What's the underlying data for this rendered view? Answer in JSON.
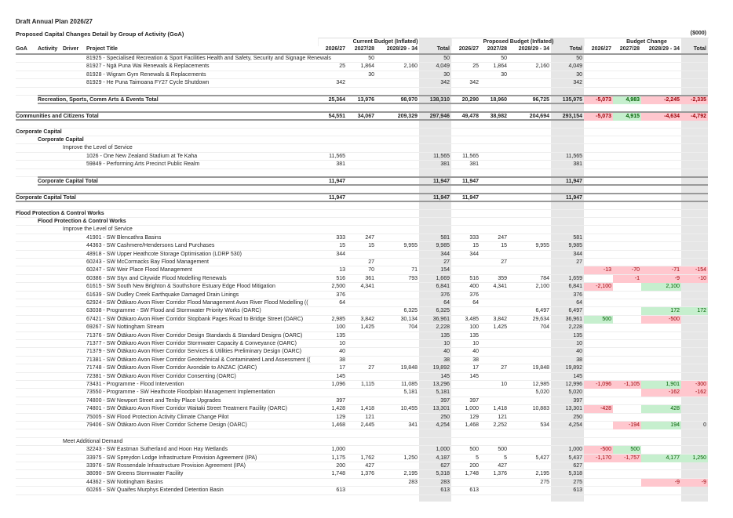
{
  "document": {
    "title": "Draft Annual Plan 2026/27",
    "subtitle": "Proposed Capital Changes Detail by Group of Activity (GoA)",
    "units": "($000)"
  },
  "group_headers": [
    "Current Budget (Inflated)",
    "Proposed Budget (Inflated)",
    "Budget Change"
  ],
  "column_headers": {
    "left": [
      "GoA",
      "Activity",
      "Driver",
      "Project Title"
    ],
    "periods": [
      "2026/27",
      "2027/28",
      "2028/29 - 34",
      "Total"
    ]
  },
  "colors": {
    "negative_bg": "#ffc7ce",
    "negative_text": "#9c0006",
    "positive_bg": "#c6efce",
    "positive_text": "#006100",
    "total_band": "#e6e6e6"
  },
  "rows": [
    {
      "level": 4,
      "label": "81925 - Specialised Recreation & Sport Facilities Health and Safety, Security and Signage Renewals",
      "cur": [
        "",
        "50",
        "",
        "50"
      ],
      "prop": [
        "",
        "50",
        "",
        "50"
      ],
      "chg": [
        "",
        "",
        "",
        ""
      ]
    },
    {
      "level": 4,
      "label": "81927 - Ngā Puna Wai Renewals & Replacements",
      "cur": [
        "25",
        "1,864",
        "2,160",
        "4,049"
      ],
      "prop": [
        "25",
        "1,864",
        "2,160",
        "4,049"
      ],
      "chg": [
        "",
        "",
        "",
        ""
      ]
    },
    {
      "level": 4,
      "label": "81928 - Wigram Gym Renewals & Replacements",
      "cur": [
        "",
        "30",
        "",
        "30"
      ],
      "prop": [
        "",
        "30",
        "",
        "30"
      ],
      "chg": [
        "",
        "",
        "",
        ""
      ]
    },
    {
      "level": 4,
      "label": "81929 - He Puna Taimoana FY27 Cycle Shutdown",
      "cur": [
        "342",
        "",
        "",
        "342"
      ],
      "prop": [
        "342",
        "",
        "",
        "342"
      ],
      "chg": [
        "",
        "",
        "",
        ""
      ]
    },
    {
      "blank": true
    },
    {
      "level": 2,
      "total": true,
      "label": "Recreation, Sports, Comm Arts & Events Total",
      "cur": [
        "25,364",
        "13,976",
        "98,970",
        "138,310"
      ],
      "prop": [
        "20,290",
        "18,960",
        "96,725",
        "135,975"
      ],
      "chg": [
        "-5,073",
        "4,983",
        "-2,245",
        "-2,335"
      ]
    },
    {
      "blank": true
    },
    {
      "level": 1,
      "total": true,
      "label": "Communities and Citizens Total",
      "cur": [
        "54,551",
        "34,067",
        "209,329",
        "297,946"
      ],
      "prop": [
        "49,478",
        "38,982",
        "204,694",
        "293,154"
      ],
      "chg": [
        "-5,073",
        "4,915",
        "-4,634",
        "-4,792"
      ]
    },
    {
      "blank": true
    },
    {
      "level": 1,
      "bold": true,
      "label": "Corporate Capital"
    },
    {
      "level": 2,
      "bold": true,
      "label": "Corporate Capital"
    },
    {
      "level": 3,
      "label": "Improve the Level of Service"
    },
    {
      "level": 4,
      "label": "1026 - One New Zealand Stadium at Te Kaha",
      "cur": [
        "11,565",
        "",
        "",
        "11,565"
      ],
      "prop": [
        "11,565",
        "",
        "",
        "11,565"
      ],
      "chg": [
        "",
        "",
        "",
        ""
      ]
    },
    {
      "level": 4,
      "label": "59849 - Performing Arts Precinct Public Realm",
      "cur": [
        "381",
        "",
        "",
        "381"
      ],
      "prop": [
        "381",
        "",
        "",
        "381"
      ],
      "chg": [
        "",
        "",
        "",
        ""
      ]
    },
    {
      "blank": true
    },
    {
      "level": 2,
      "total": true,
      "label": "Corporate Capital Total",
      "cur": [
        "11,947",
        "",
        "",
        "11,947"
      ],
      "prop": [
        "11,947",
        "",
        "",
        "11,947"
      ],
      "chg": [
        "",
        "",
        "",
        ""
      ]
    },
    {
      "blank": true
    },
    {
      "level": 1,
      "total": true,
      "label": "Corporate Capital Total",
      "cur": [
        "11,947",
        "",
        "",
        "11,947"
      ],
      "prop": [
        "11,947",
        "",
        "",
        "11,947"
      ],
      "chg": [
        "",
        "",
        "",
        ""
      ]
    },
    {
      "blank": true
    },
    {
      "level": 1,
      "bold": true,
      "label": "Flood Protection & Control Works"
    },
    {
      "level": 2,
      "bold": true,
      "label": "Flood Protection & Control Works"
    },
    {
      "level": 3,
      "label": "Improve the Level of Service"
    },
    {
      "level": 4,
      "label": "41901 - SW Blencathra Basins",
      "cur": [
        "333",
        "247",
        "",
        "581"
      ],
      "prop": [
        "333",
        "247",
        "",
        "581"
      ],
      "chg": [
        "",
        "",
        "",
        ""
      ]
    },
    {
      "level": 4,
      "label": "44363 - SW Cashmere/Hendersons Land Purchases",
      "cur": [
        "15",
        "15",
        "9,955",
        "9,985"
      ],
      "prop": [
        "15",
        "15",
        "9,955",
        "9,985"
      ],
      "chg": [
        "",
        "",
        "",
        ""
      ]
    },
    {
      "level": 4,
      "label": "48918 - SW Upper Heathcote Storage Optimisation (LDRP 530)",
      "cur": [
        "344",
        "",
        "",
        "344"
      ],
      "prop": [
        "344",
        "",
        "",
        "344"
      ],
      "chg": [
        "",
        "",
        "",
        ""
      ]
    },
    {
      "level": 4,
      "label": "60243 - SW McCormacks Bay Flood Management",
      "cur": [
        "",
        "27",
        "",
        "27"
      ],
      "prop": [
        "",
        "27",
        "",
        "27"
      ],
      "chg": [
        "",
        "",
        "",
        ""
      ]
    },
    {
      "level": 4,
      "label": "60247 - SW Weir Place Flood Management",
      "cur": [
        "13",
        "70",
        "71",
        "154"
      ],
      "prop": [
        "",
        "",
        "",
        ""
      ],
      "chg": [
        "-13",
        "-70",
        "-71",
        "-154"
      ]
    },
    {
      "level": 4,
      "label": "60386 - SW Styx and Citywide Flood Modelling Renewals",
      "cur": [
        "516",
        "361",
        "793",
        "1,669"
      ],
      "prop": [
        "516",
        "359",
        "784",
        "1,659"
      ],
      "chg": [
        "",
        "-1",
        "-9",
        "-10"
      ]
    },
    {
      "level": 4,
      "label": "61615 - SW South New Brighton & Southshore Estuary Edge Flood Mitigation",
      "cur": [
        "2,500",
        "4,341",
        "",
        "6,841"
      ],
      "prop": [
        "400",
        "4,341",
        "2,100",
        "6,841"
      ],
      "chg": [
        "-2,100",
        "",
        "2,100",
        ""
      ]
    },
    {
      "level": 4,
      "label": "61639 - SW Dudley Creek Earthquake Damaged Drain Linings",
      "cur": [
        "376",
        "",
        "",
        "376"
      ],
      "prop": [
        "376",
        "",
        "",
        "376"
      ],
      "chg": [
        "",
        "",
        "",
        ""
      ]
    },
    {
      "level": 4,
      "label": "62924 - SW Ōtākaro Avon River Corridor Flood Management Avon River Flood Modelling ((",
      "cur": [
        "64",
        "",
        "",
        "64"
      ],
      "prop": [
        "64",
        "",
        "",
        "64"
      ],
      "chg": [
        "",
        "",
        "",
        ""
      ]
    },
    {
      "level": 4,
      "label": "63038 - Programme - SW Flood and Stormwater Priority Works (OARC)",
      "cur": [
        "",
        "",
        "6,325",
        "6,325"
      ],
      "prop": [
        "",
        "",
        "6,497",
        "6,497"
      ],
      "chg": [
        "",
        "",
        "172",
        "172"
      ]
    },
    {
      "level": 4,
      "label": "67421 - SW Ōtākaro Avon River Corridor Stopbank Pages Road to Bridge Street (OARC)",
      "cur": [
        "2,985",
        "3,842",
        "30,134",
        "36,961"
      ],
      "prop": [
        "3,485",
        "3,842",
        "29,634",
        "36,961"
      ],
      "chg": [
        "500",
        "",
        "-500",
        ""
      ]
    },
    {
      "level": 4,
      "label": "69267 - SW Nottingham Stream",
      "cur": [
        "100",
        "1,425",
        "704",
        "2,228"
      ],
      "prop": [
        "100",
        "1,425",
        "704",
        "2,228"
      ],
      "chg": [
        "",
        "",
        "",
        ""
      ]
    },
    {
      "level": 4,
      "label": "71376 - SW Ōtākaro Avon River Corridor Design Standards & Standard Designs (OARC)",
      "cur": [
        "135",
        "",
        "",
        "135"
      ],
      "prop": [
        "135",
        "",
        "",
        "135"
      ],
      "chg": [
        "",
        "",
        "",
        ""
      ]
    },
    {
      "level": 4,
      "label": "71377 - SW Ōtākaro Avon River Corridor Stormwater Capacity & Conveyance (OARC)",
      "cur": [
        "10",
        "",
        "",
        "10"
      ],
      "prop": [
        "10",
        "",
        "",
        "10"
      ],
      "chg": [
        "",
        "",
        "",
        ""
      ]
    },
    {
      "level": 4,
      "label": "71379 - SW Ōtākaro Avon River Corridor Services & Utilities Preliminary Design (OARC)",
      "cur": [
        "40",
        "",
        "",
        "40"
      ],
      "prop": [
        "40",
        "",
        "",
        "40"
      ],
      "chg": [
        "",
        "",
        "",
        ""
      ]
    },
    {
      "level": 4,
      "label": "71381 - SW Ōtākaro Avon River Corridor Geotechnical & Contaminated Land Assessment ((",
      "cur": [
        "38",
        "",
        "",
        "38"
      ],
      "prop": [
        "38",
        "",
        "",
        "38"
      ],
      "chg": [
        "",
        "",
        "",
        ""
      ]
    },
    {
      "level": 4,
      "label": "71748 - SW Ōtākaro Avon River Corridor Avondale to ANZAC (OARC)",
      "cur": [
        "17",
        "27",
        "19,848",
        "19,892"
      ],
      "prop": [
        "17",
        "27",
        "19,848",
        "19,892"
      ],
      "chg": [
        "",
        "",
        "",
        ""
      ]
    },
    {
      "level": 4,
      "label": "72381 - SW Ōtākaro Avon River Corridor Consenting (OARC)",
      "cur": [
        "145",
        "",
        "",
        "145"
      ],
      "prop": [
        "145",
        "",
        "",
        "145"
      ],
      "chg": [
        "",
        "",
        "",
        ""
      ]
    },
    {
      "level": 4,
      "label": "73431 - Programme - Flood Intervention",
      "cur": [
        "1,096",
        "1,115",
        "11,085",
        "13,296"
      ],
      "prop": [
        "",
        "10",
        "12,985",
        "12,996"
      ],
      "chg": [
        "-1,096",
        "-1,105",
        "1,901",
        "-300"
      ]
    },
    {
      "level": 4,
      "label": "73550 - Programme - SW Heathcote Floodplain Management Implementation",
      "cur": [
        "",
        "",
        "5,181",
        "5,181"
      ],
      "prop": [
        "",
        "",
        "5,020",
        "5,020"
      ],
      "chg": [
        "",
        "",
        "-162",
        "-162"
      ]
    },
    {
      "level": 4,
      "label": "74800 - SW Newport Street and Tenby Place Upgrades",
      "cur": [
        "397",
        "",
        "",
        "397"
      ],
      "prop": [
        "397",
        "",
        "",
        "397"
      ],
      "chg": [
        "",
        "",
        "",
        ""
      ]
    },
    {
      "level": 4,
      "label": "74801 - SW Ōtākaro Avon River Corridor Waitaki Street Treatment Facility (OARC)",
      "cur": [
        "1,428",
        "1,418",
        "10,455",
        "13,301"
      ],
      "prop": [
        "1,000",
        "1,418",
        "10,883",
        "13,301"
      ],
      "chg": [
        "-428",
        "",
        "428",
        ""
      ]
    },
    {
      "level": 4,
      "label": "75005 - SW Flood Protection Activity Climate Change Pilot",
      "cur": [
        "129",
        "121",
        "",
        "250"
      ],
      "prop": [
        "129",
        "121",
        "",
        "250"
      ],
      "chg": [
        "",
        "",
        "",
        ""
      ]
    },
    {
      "level": 4,
      "label": "79406 - SW Ōtākaro Avon River Corridor Scheme Design (OARC)",
      "cur": [
        "1,468",
        "2,445",
        "341",
        "4,254"
      ],
      "prop": [
        "1,468",
        "2,252",
        "534",
        "4,254"
      ],
      "chg": [
        "",
        "-194",
        "194",
        "0"
      ]
    },
    {
      "blank": true
    },
    {
      "level": 3,
      "label": "Meet Additional Demand"
    },
    {
      "level": 4,
      "label": "32243 - SW Eastman Sutherland and Hoon Hay Wetlands",
      "cur": [
        "1,000",
        "",
        "",
        "1,000"
      ],
      "prop": [
        "500",
        "500",
        "",
        "1,000"
      ],
      "chg": [
        "-500",
        "500",
        "",
        ""
      ]
    },
    {
      "level": 4,
      "label": "33975 - SW Spreydon Lodge Infrastructure Provision Agreement (IPA)",
      "cur": [
        "1,175",
        "1,762",
        "1,250",
        "4,187"
      ],
      "prop": [
        "5",
        "5",
        "5,427",
        "5,437"
      ],
      "chg": [
        "-1,170",
        "-1,757",
        "4,177",
        "1,250"
      ]
    },
    {
      "level": 4,
      "label": "33976 - SW Rossendale Infrastructure Provision Agreement (IPA)",
      "cur": [
        "200",
        "427",
        "",
        "627"
      ],
      "prop": [
        "200",
        "427",
        "",
        "627"
      ],
      "chg": [
        "",
        "",
        "",
        ""
      ]
    },
    {
      "level": 4,
      "label": "38090 - SW Greens Stormwater Facility",
      "cur": [
        "1,748",
        "1,376",
        "2,195",
        "5,318"
      ],
      "prop": [
        "1,748",
        "1,376",
        "2,195",
        "5,318"
      ],
      "chg": [
        "",
        "",
        "",
        ""
      ]
    },
    {
      "level": 4,
      "label": "44362 - SW Nottingham Basins",
      "cur": [
        "",
        "",
        "283",
        "283"
      ],
      "prop": [
        "",
        "",
        "275",
        "275"
      ],
      "chg": [
        "",
        "",
        "-9",
        "-9"
      ]
    },
    {
      "level": 4,
      "label": "60265 - SW Quaifes Murphys Extended Detention Basin",
      "cur": [
        "613",
        "",
        "",
        "613"
      ],
      "prop": [
        "613",
        "",
        "",
        "613"
      ],
      "chg": [
        "",
        "",
        "",
        ""
      ]
    }
  ]
}
